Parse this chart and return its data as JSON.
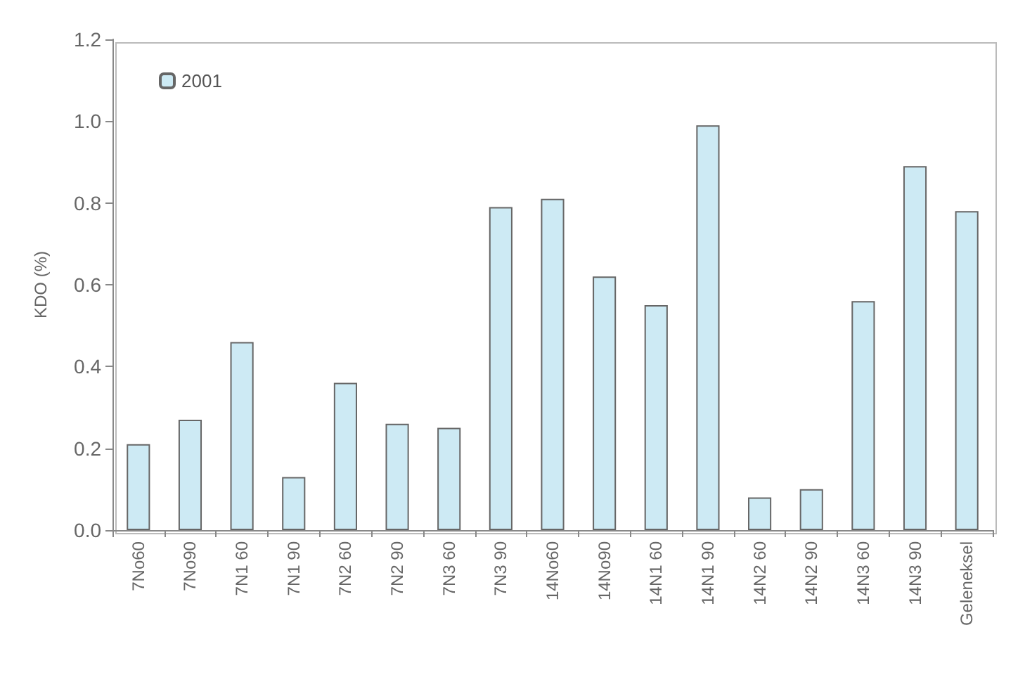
{
  "chart_data": {
    "type": "bar",
    "ylabel": "KDO (%)",
    "categories": [
      "7No60",
      "7No90",
      "7N1 60",
      "7N1 90",
      "7N2 60",
      "7N2 90",
      "7N3 60",
      "7N3 90",
      "14No60",
      "14No90",
      "14N1 60",
      "14N1 90",
      "14N2 60",
      "14N2 90",
      "14N3 60",
      "14N3 90",
      "Geleneksel"
    ],
    "series": [
      {
        "name": "2001",
        "color": "#cdeaf4",
        "values": [
          0.21,
          0.27,
          0.46,
          0.13,
          0.36,
          0.26,
          0.25,
          0.79,
          0.81,
          0.62,
          0.55,
          0.99,
          0.08,
          0.1,
          0.56,
          0.89,
          0.78
        ]
      }
    ],
    "ylim": [
      0,
      1.2
    ],
    "yticks": [
      {
        "value": 0,
        "label": "0.0"
      },
      0.2,
      0.4,
      0.6,
      0.8,
      {
        "value": 1,
        "label": "1.0"
      },
      1.2
    ],
    "grid": false,
    "legend": "top left"
  }
}
